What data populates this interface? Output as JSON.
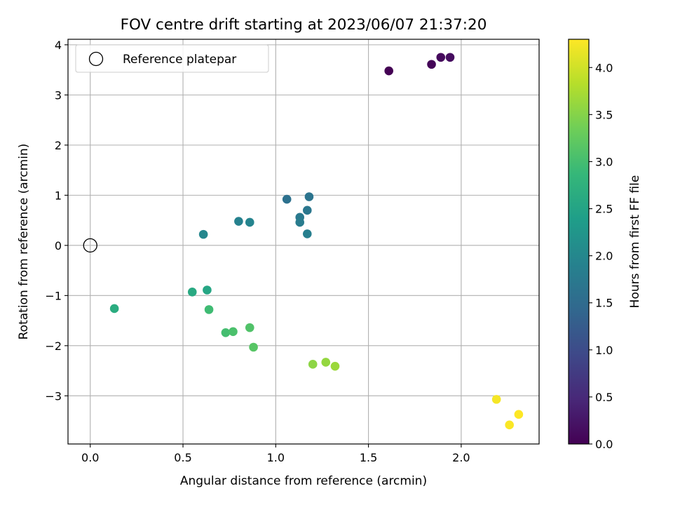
{
  "chart_data": {
    "type": "scatter",
    "title": "FOV centre drift starting at 2023/06/07 21:37:20",
    "xlabel": "Angular distance from reference (arcmin)",
    "ylabel": "Rotation from reference (arcmin)",
    "xlim": [
      -0.12,
      2.42
    ],
    "ylim": [
      -3.96,
      4.11
    ],
    "xticks": [
      0.0,
      0.5,
      1.0,
      1.5,
      2.0
    ],
    "xtick_labels": [
      "0.0",
      "0.5",
      "1.0",
      "1.5",
      "2.0"
    ],
    "yticks": [
      -3,
      -2,
      -1,
      0,
      1,
      2,
      3,
      4
    ],
    "ytick_labels": [
      "−3",
      "−2",
      "−1",
      "0",
      "1",
      "2",
      "3",
      "4"
    ],
    "grid": true,
    "legend": {
      "placement": "top-left",
      "entries": [
        "Reference platepar"
      ]
    },
    "reference_point": {
      "x": 0.0,
      "y": 0.0
    },
    "colorbar": {
      "label": "Hours from first FF file",
      "range": [
        0.0,
        4.3
      ],
      "ticks": [
        0.0,
        0.5,
        1.0,
        1.5,
        2.0,
        2.5,
        3.0,
        3.5,
        4.0
      ],
      "tick_labels": [
        "0.0",
        "0.5",
        "1.0",
        "1.5",
        "2.0",
        "2.5",
        "3.0",
        "3.5",
        "4.0"
      ],
      "colormap": [
        "#440154",
        "#482878",
        "#3e4989",
        "#31688e",
        "#26828e",
        "#1f9e89",
        "#35b779",
        "#6ece58",
        "#b5de2b",
        "#fde725"
      ]
    },
    "points": [
      {
        "x": 1.61,
        "y": 3.48,
        "hours": 0.0
      },
      {
        "x": 1.84,
        "y": 3.61,
        "hours": 0.05
      },
      {
        "x": 1.89,
        "y": 3.75,
        "hours": 0.1
      },
      {
        "x": 1.94,
        "y": 3.75,
        "hours": 0.15
      },
      {
        "x": 1.06,
        "y": 0.92,
        "hours": 1.6
      },
      {
        "x": 1.18,
        "y": 0.97,
        "hours": 1.65
      },
      {
        "x": 1.17,
        "y": 0.7,
        "hours": 1.7
      },
      {
        "x": 1.13,
        "y": 0.56,
        "hours": 1.75
      },
      {
        "x": 1.13,
        "y": 0.46,
        "hours": 1.8
      },
      {
        "x": 1.17,
        "y": 0.23,
        "hours": 1.85
      },
      {
        "x": 0.8,
        "y": 0.48,
        "hours": 1.9
      },
      {
        "x": 0.86,
        "y": 0.46,
        "hours": 1.95
      },
      {
        "x": 0.61,
        "y": 0.22,
        "hours": 2.0
      },
      {
        "x": 0.63,
        "y": -0.89,
        "hours": 2.55
      },
      {
        "x": 0.55,
        "y": -0.93,
        "hours": 2.6
      },
      {
        "x": 0.13,
        "y": -1.26,
        "hours": 2.65
      },
      {
        "x": 0.64,
        "y": -1.28,
        "hours": 2.95
      },
      {
        "x": 0.73,
        "y": -1.74,
        "hours": 3.0
      },
      {
        "x": 0.77,
        "y": -1.72,
        "hours": 3.05
      },
      {
        "x": 0.86,
        "y": -1.64,
        "hours": 3.1
      },
      {
        "x": 0.88,
        "y": -2.03,
        "hours": 3.15
      },
      {
        "x": 1.2,
        "y": -2.37,
        "hours": 3.55
      },
      {
        "x": 1.27,
        "y": -2.33,
        "hours": 3.6
      },
      {
        "x": 1.32,
        "y": -2.41,
        "hours": 3.65
      },
      {
        "x": 2.19,
        "y": -3.07,
        "hours": 4.25
      },
      {
        "x": 2.26,
        "y": -3.58,
        "hours": 4.28
      },
      {
        "x": 2.31,
        "y": -3.37,
        "hours": 4.3
      }
    ]
  }
}
